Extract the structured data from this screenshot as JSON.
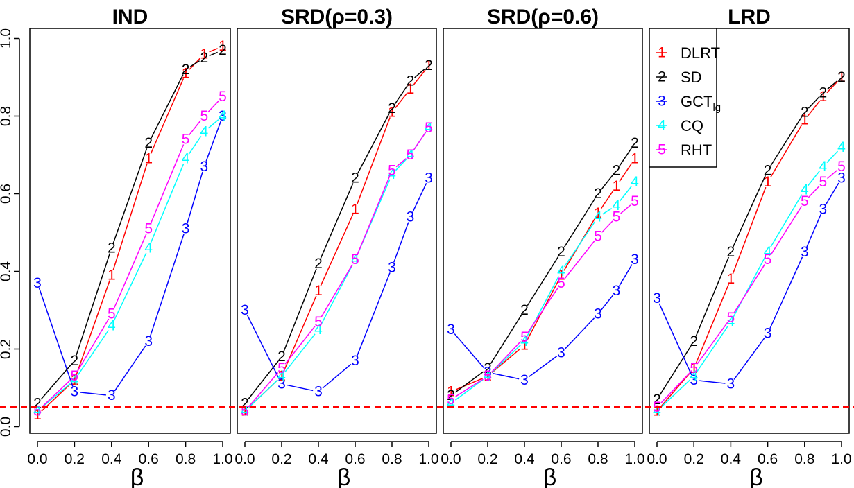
{
  "chart_data": {
    "type": "line",
    "xlabel": "β",
    "ylim": [
      0,
      1.0
    ],
    "yticks": [
      "0.0",
      "0.2",
      "0.4",
      "0.6",
      "0.8",
      "1.0"
    ],
    "xticks": [
      "0.0",
      "0.2",
      "0.4",
      "0.6",
      "0.8",
      "1.0"
    ],
    "reference_line": {
      "y": 0.05,
      "color": "#ff0000",
      "style": "dashed"
    },
    "legend": {
      "placement": "top-right",
      "entries": [
        {
          "marker": "1",
          "label": "DLRT",
          "color": "#ff0000"
        },
        {
          "marker": "2",
          "label": "SD",
          "color": "#000000"
        },
        {
          "marker": "3",
          "label": "GCT",
          "sub": "lg",
          "color": "#0000ff"
        },
        {
          "marker": "4",
          "label": "CQ",
          "color": "#00ffff"
        },
        {
          "marker": "5",
          "label": "RHT",
          "color": "#ff00ff"
        }
      ]
    },
    "panels": [
      {
        "title": "IND",
        "series": [
          {
            "marker": "1",
            "color": "#ff0000",
            "x": [
              0,
              0.2,
              0.4,
              0.6,
              0.8,
              0.9,
              1.0
            ],
            "y": [
              0.03,
              0.12,
              0.39,
              0.69,
              0.91,
              0.96,
              0.98
            ]
          },
          {
            "marker": "2",
            "color": "#000000",
            "x": [
              0,
              0.2,
              0.4,
              0.6,
              0.8,
              0.9,
              1.0
            ],
            "y": [
              0.06,
              0.17,
              0.46,
              0.73,
              0.92,
              0.95,
              0.97
            ]
          },
          {
            "marker": "3",
            "color": "#0000ff",
            "x": [
              0,
              0.2,
              0.4,
              0.6,
              0.8,
              0.9,
              1.0
            ],
            "y": [
              0.37,
              0.09,
              0.08,
              0.22,
              0.51,
              0.67,
              0.8
            ]
          },
          {
            "marker": "4",
            "color": "#00ffff",
            "x": [
              0,
              0.2,
              0.4,
              0.6,
              0.8,
              0.9,
              1.0
            ],
            "y": [
              0.04,
              0.12,
              0.26,
              0.46,
              0.69,
              0.76,
              0.8
            ]
          },
          {
            "marker": "5",
            "color": "#ff00ff",
            "x": [
              0,
              0.2,
              0.4,
              0.6,
              0.8,
              0.9,
              1.0
            ],
            "y": [
              0.04,
              0.13,
              0.29,
              0.51,
              0.74,
              0.8,
              0.85
            ]
          }
        ]
      },
      {
        "title": "SRD(ρ=0.3)",
        "series": [
          {
            "marker": "1",
            "color": "#ff0000",
            "x": [
              0,
              0.2,
              0.4,
              0.6,
              0.8,
              0.9,
              1.0
            ],
            "y": [
              0.04,
              0.13,
              0.35,
              0.56,
              0.81,
              0.87,
              0.93
            ]
          },
          {
            "marker": "2",
            "color": "#000000",
            "x": [
              0,
              0.2,
              0.4,
              0.6,
              0.8,
              0.9,
              1.0
            ],
            "y": [
              0.06,
              0.18,
              0.42,
              0.64,
              0.82,
              0.89,
              0.93
            ]
          },
          {
            "marker": "3",
            "color": "#0000ff",
            "x": [
              0,
              0.2,
              0.4,
              0.6,
              0.8,
              0.9,
              1.0
            ],
            "y": [
              0.3,
              0.11,
              0.09,
              0.17,
              0.41,
              0.54,
              0.64
            ]
          },
          {
            "marker": "4",
            "color": "#00ffff",
            "x": [
              0,
              0.2,
              0.4,
              0.6,
              0.8,
              0.9,
              1.0
            ],
            "y": [
              0.04,
              0.13,
              0.25,
              0.43,
              0.65,
              0.7,
              0.77
            ]
          },
          {
            "marker": "5",
            "color": "#ff00ff",
            "x": [
              0,
              0.2,
              0.4,
              0.6,
              0.8,
              0.9,
              1.0
            ],
            "y": [
              0.04,
              0.15,
              0.27,
              0.43,
              0.66,
              0.7,
              0.77
            ]
          }
        ]
      },
      {
        "title": "SRD(ρ=0.6)",
        "series": [
          {
            "marker": "1",
            "color": "#ff0000",
            "x": [
              0,
              0.2,
              0.4,
              0.6,
              0.8,
              0.9,
              1.0
            ],
            "y": [
              0.09,
              0.13,
              0.21,
              0.39,
              0.55,
              0.62,
              0.69
            ]
          },
          {
            "marker": "2",
            "color": "#000000",
            "x": [
              0,
              0.2,
              0.4,
              0.6,
              0.8,
              0.9,
              1.0
            ],
            "y": [
              0.08,
              0.15,
              0.3,
              0.45,
              0.6,
              0.66,
              0.73
            ]
          },
          {
            "marker": "3",
            "color": "#0000ff",
            "x": [
              0,
              0.2,
              0.4,
              0.6,
              0.8,
              0.9,
              1.0
            ],
            "y": [
              0.25,
              0.14,
              0.12,
              0.19,
              0.29,
              0.35,
              0.43
            ]
          },
          {
            "marker": "4",
            "color": "#00ffff",
            "x": [
              0,
              0.2,
              0.4,
              0.6,
              0.8,
              0.9,
              1.0
            ],
            "y": [
              0.06,
              0.13,
              0.22,
              0.4,
              0.54,
              0.57,
              0.63
            ]
          },
          {
            "marker": "5",
            "color": "#ff00ff",
            "x": [
              0,
              0.2,
              0.4,
              0.6,
              0.8,
              0.9,
              1.0
            ],
            "y": [
              0.07,
              0.13,
              0.23,
              0.37,
              0.49,
              0.54,
              0.58
            ]
          }
        ]
      },
      {
        "title": "LRD",
        "series": [
          {
            "marker": "1",
            "color": "#ff0000",
            "x": [
              0,
              0.2,
              0.4,
              0.6,
              0.8,
              0.9,
              1.0
            ],
            "y": [
              0.04,
              0.15,
              0.38,
              0.63,
              0.79,
              0.85,
              0.9
            ]
          },
          {
            "marker": "2",
            "color": "#000000",
            "x": [
              0,
              0.2,
              0.4,
              0.6,
              0.8,
              0.9,
              1.0
            ],
            "y": [
              0.07,
              0.22,
              0.45,
              0.66,
              0.81,
              0.86,
              0.9
            ]
          },
          {
            "marker": "3",
            "color": "#0000ff",
            "x": [
              0,
              0.2,
              0.4,
              0.6,
              0.8,
              0.9,
              1.0
            ],
            "y": [
              0.33,
              0.12,
              0.11,
              0.24,
              0.45,
              0.56,
              0.64
            ]
          },
          {
            "marker": "4",
            "color": "#00ffff",
            "x": [
              0,
              0.2,
              0.4,
              0.6,
              0.8,
              0.9,
              1.0
            ],
            "y": [
              0.04,
              0.13,
              0.27,
              0.45,
              0.61,
              0.67,
              0.72
            ]
          },
          {
            "marker": "5",
            "color": "#ff00ff",
            "x": [
              0,
              0.2,
              0.4,
              0.6,
              0.8,
              0.9,
              1.0
            ],
            "y": [
              0.05,
              0.15,
              0.28,
              0.43,
              0.58,
              0.63,
              0.67
            ]
          }
        ]
      }
    ]
  }
}
